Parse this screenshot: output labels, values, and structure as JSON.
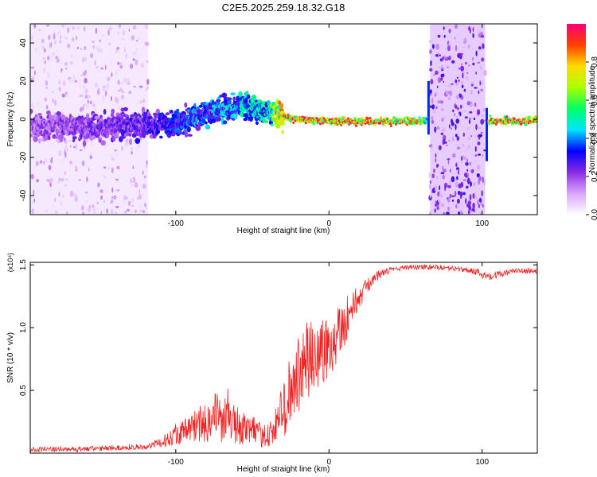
{
  "figure": {
    "title": "C2E5.2025.259.18.32.G18"
  },
  "chart_data": [
    {
      "type": "heatmap",
      "name": "spectrogram",
      "title": "C2E5.2025.259.18.32.G18",
      "xlabel": "Height of straight line (km)",
      "ylabel": "Frequency (Hz)",
      "xlim": [
        -195,
        136
      ],
      "ylim": [
        -50,
        50
      ],
      "x_ticks": [
        -100,
        0,
        100
      ],
      "x_tick_labels": [
        "-100",
        "0",
        "100"
      ],
      "y_ticks": [
        -40,
        -20,
        0,
        20,
        40
      ],
      "y_tick_labels": [
        "-40",
        "-20",
        "0",
        "20",
        "40"
      ],
      "colorbar": {
        "label": "Normalized spectral amplitude",
        "range": [
          0,
          1
        ],
        "ticks": [
          0.0,
          0.2,
          0.4,
          0.6,
          0.8
        ],
        "tick_labels": [
          "0.0",
          "0.2",
          "0.4",
          "0.6",
          "0.8"
        ],
        "colors": [
          "#ffffff",
          "#d9a6ff",
          "#8a2be2",
          "#0000ff",
          "#00e5ff",
          "#00ff66",
          "#aaff00",
          "#ffdd00",
          "#ff4000",
          "#ff0077"
        ]
      },
      "ridge": {
        "points": [
          [
            -195,
            -4
          ],
          [
            -150,
            -4
          ],
          [
            -120,
            -3
          ],
          [
            -100,
            -2
          ],
          [
            -80,
            3
          ],
          [
            -60,
            7
          ],
          [
            -45,
            5
          ],
          [
            -38,
            4
          ],
          [
            -25,
            0
          ],
          [
            0,
            -1
          ],
          [
            30,
            -1
          ],
          [
            60,
            -1
          ],
          [
            136,
            -1
          ]
        ],
        "amplitude": [
          [
            -195,
            0.2
          ],
          [
            -120,
            0.28
          ],
          [
            -100,
            0.35
          ],
          [
            -60,
            0.45
          ],
          [
            -40,
            0.55
          ],
          [
            -30,
            0.85
          ],
          [
            0,
            0.9
          ],
          [
            30,
            0.9
          ],
          [
            60,
            0.8
          ],
          [
            64,
            0.5
          ],
          [
            102,
            0.5
          ],
          [
            106,
            0.9
          ],
          [
            136,
            0.9
          ]
        ]
      },
      "noise_bands": [
        {
          "x": [
            -195,
            -118
          ],
          "density": 0.55,
          "amplitude": 0.1
        },
        {
          "x": [
            66,
            102
          ],
          "density": 0.9,
          "amplitude": 0.2
        }
      ]
    },
    {
      "type": "line",
      "name": "snr",
      "xlabel": "Height of straight line (km)",
      "ylabel": "SNR (10 * v/v)",
      "y_scale_label": "(x10⁴)",
      "xlim": [
        -195,
        136
      ],
      "ylim": [
        0,
        1.52
      ],
      "x_ticks": [
        -100,
        0,
        100
      ],
      "x_tick_labels": [
        "-100",
        "0",
        "100"
      ],
      "y_ticks": [
        0.5,
        1.0,
        1.5
      ],
      "y_tick_labels": [
        "0.5",
        "1.0",
        "1.5"
      ],
      "color": "#ee2222",
      "series": [
        {
          "name": "SNR",
          "x": [
            -195,
            -170,
            -140,
            -120,
            -110,
            -100,
            -90,
            -80,
            -75,
            -70,
            -60,
            -50,
            -42,
            -35,
            -30,
            -25,
            -20,
            -15,
            -10,
            -5,
            0,
            5,
            10,
            15,
            20,
            25,
            30,
            40,
            50,
            60,
            70,
            80,
            90,
            95,
            100,
            105,
            110,
            120,
            136
          ],
          "values": [
            0.03,
            0.03,
            0.04,
            0.05,
            0.08,
            0.15,
            0.2,
            0.26,
            0.3,
            0.28,
            0.22,
            0.18,
            0.12,
            0.2,
            0.35,
            0.5,
            0.62,
            0.72,
            0.76,
            0.8,
            0.86,
            0.95,
            1.05,
            1.15,
            1.25,
            1.33,
            1.4,
            1.46,
            1.48,
            1.48,
            1.48,
            1.47,
            1.46,
            1.45,
            1.43,
            1.41,
            1.42,
            1.45,
            1.45
          ],
          "noise": [
            0.02,
            0.02,
            0.02,
            0.02,
            0.04,
            0.08,
            0.12,
            0.18,
            0.2,
            0.2,
            0.15,
            0.12,
            0.08,
            0.15,
            0.25,
            0.3,
            0.32,
            0.33,
            0.32,
            0.3,
            0.28,
            0.25,
            0.2,
            0.15,
            0.1,
            0.06,
            0.04,
            0.02,
            0.02,
            0.02,
            0.02,
            0.02,
            0.02,
            0.03,
            0.03,
            0.03,
            0.03,
            0.02,
            0.02
          ]
        }
      ]
    }
  ]
}
